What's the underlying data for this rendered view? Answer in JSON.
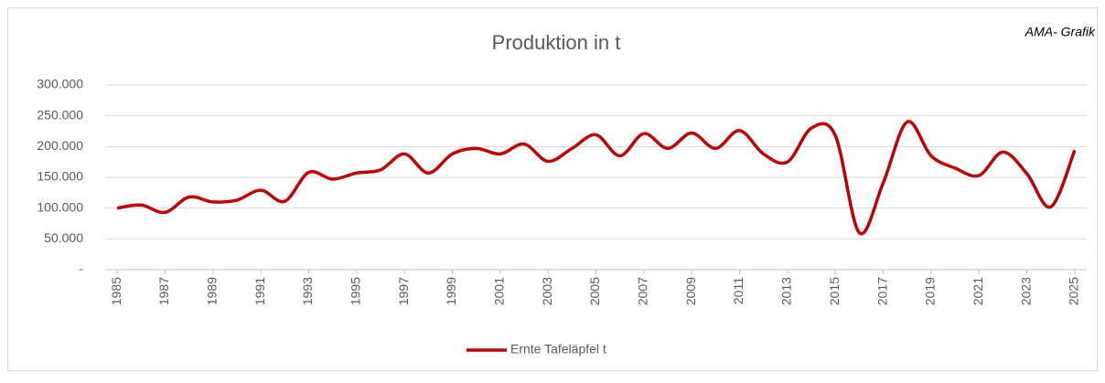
{
  "chart_data": {
    "type": "line",
    "title": "Produktion in t",
    "annotation": "AMA- Grafik",
    "x": [
      1985,
      1986,
      1987,
      1988,
      1989,
      1990,
      1991,
      1992,
      1993,
      1994,
      1995,
      1996,
      1997,
      1998,
      1999,
      2000,
      2001,
      2002,
      2003,
      2004,
      2005,
      2006,
      2007,
      2008,
      2009,
      2010,
      2011,
      2012,
      2013,
      2014,
      2015,
      2016,
      2017,
      2018,
      2019,
      2020,
      2021,
      2022,
      2023,
      2024,
      2025
    ],
    "xlim": [
      1984.5,
      2025.5
    ],
    "xticks": [
      1985,
      1987,
      1989,
      1991,
      1993,
      1995,
      1997,
      1999,
      2001,
      2003,
      2005,
      2007,
      2009,
      2011,
      2013,
      2015,
      2017,
      2019,
      2021,
      2023,
      2025
    ],
    "series": [
      {
        "name": "Ernte Tafeläpfel  t",
        "color": "#c00000",
        "values": [
          100000,
          105000,
          93000,
          118000,
          110000,
          113000,
          129000,
          111000,
          158000,
          147000,
          157000,
          162000,
          188000,
          157000,
          188000,
          197000,
          188000,
          204000,
          176000,
          197000,
          219000,
          185000,
          221000,
          197000,
          222000,
          197000,
          226000,
          188000,
          175000,
          230000,
          218000,
          60000,
          141000,
          240000,
          185000,
          165000,
          153000,
          191000,
          156000,
          102000,
          194000
        ]
      }
    ],
    "ylim": [
      0,
      300000
    ],
    "yticks": [
      {
        "value": 0,
        "label": "-"
      },
      {
        "value": 50000,
        "label": "50.000"
      },
      {
        "value": 100000,
        "label": "100.000"
      },
      {
        "value": 150000,
        "label": "150.000"
      },
      {
        "value": 200000,
        "label": "200.000"
      },
      {
        "value": 250000,
        "label": "250.000"
      },
      {
        "value": 300000,
        "label": "300.000"
      }
    ],
    "grid": true,
    "legend": "bottom"
  }
}
